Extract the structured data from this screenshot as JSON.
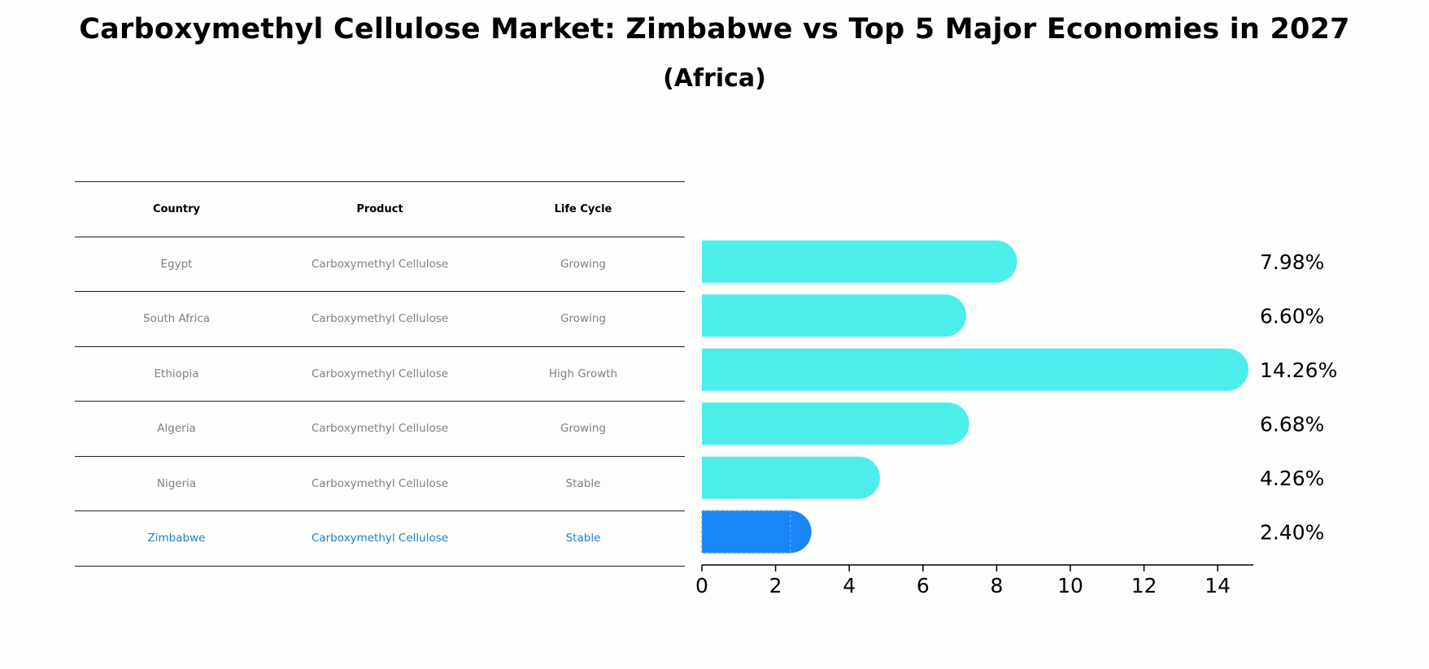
{
  "title": "Carboxymethyl Cellulose Market: Zimbabwe vs Top 5 Major Economies in 2027",
  "subtitle": "(Africa)",
  "table": {
    "headers": [
      "Country",
      "Product",
      "Life Cycle"
    ],
    "rows": [
      [
        "Egypt",
        "Carboxymethyl Cellulose",
        "Growing"
      ],
      [
        "South Africa",
        "Carboxymethyl Cellulose",
        "Growing"
      ],
      [
        "Ethiopia",
        "Carboxymethyl Cellulose",
        "High Growth"
      ],
      [
        "Algeria",
        "Carboxymethyl Cellulose",
        "Growing"
      ],
      [
        "Nigeria",
        "Carboxymethyl Cellulose",
        "Stable"
      ],
      [
        "Zimbabwe",
        "Carboxymethyl Cellulose",
        "Stable"
      ]
    ]
  },
  "colors": {
    "bar": "#4deeea",
    "highlight_bar": "#1a85f5",
    "highlight_text": "#1f7fc4"
  },
  "chart_data": {
    "type": "bar",
    "orientation": "horizontal",
    "categories": [
      "Egypt",
      "South Africa",
      "Ethiopia",
      "Algeria",
      "Nigeria",
      "Zimbabwe"
    ],
    "values": [
      7.98,
      6.6,
      14.26,
      6.68,
      4.26,
      2.4
    ],
    "value_labels": [
      "7.98%",
      "6.60%",
      "14.26%",
      "6.68%",
      "4.26%",
      "2.40%"
    ],
    "highlight": "Zimbabwe",
    "xlim": [
      0,
      15
    ],
    "xticks": [
      0,
      2,
      4,
      6,
      8,
      10,
      12,
      14
    ]
  }
}
